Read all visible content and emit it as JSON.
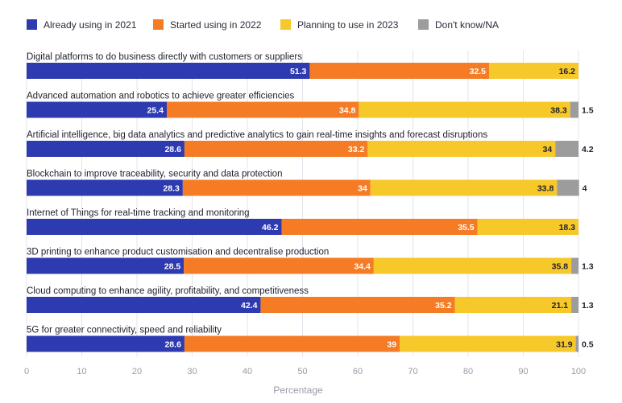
{
  "chart_data": {
    "type": "bar",
    "orientation": "horizontal",
    "stacked": true,
    "xlabel": "Percentage",
    "xlim": [
      0,
      100
    ],
    "xticks": [
      0,
      10,
      20,
      30,
      40,
      50,
      60,
      70,
      80,
      90,
      100
    ],
    "categories": [
      "Digital platforms to do business directly with customers or suppliers",
      "Advanced automation and robotics to achieve greater efficiencies",
      "Artificial intelligence, big data analytics and predictive analytics to gain real-time insights and forecast disruptions",
      "Blockchain to improve traceability, security and data protection",
      "Internet of Things for real-time tracking and monitoring",
      "3D printing to enhance product customisation and decentralise production",
      "Cloud computing to enhance agility, profitability, and competitiveness",
      "5G for greater connectivity, speed and reliability"
    ],
    "series": [
      {
        "name": "Already using in 2021",
        "color": "#2e3ab0",
        "label_color": "#ffffff",
        "values": [
          51.3,
          25.4,
          28.6,
          28.3,
          46.2,
          28.5,
          42.4,
          28.6
        ]
      },
      {
        "name": "Started using in 2022",
        "color": "#f57c25",
        "label_color": "#ffffff",
        "values": [
          32.5,
          34.8,
          33.2,
          34,
          35.5,
          34.4,
          35.2,
          39
        ]
      },
      {
        "name": "Planning to use in 2023",
        "color": "#f7c82a",
        "label_color": "#1f1f2e",
        "values": [
          16.2,
          38.3,
          34,
          33.8,
          18.3,
          35.8,
          21.1,
          31.9
        ]
      },
      {
        "name": "Don't know/NA",
        "color": "#9c9c9c",
        "label_color": "#1f1f2e",
        "values": [
          null,
          1.5,
          4.2,
          4,
          null,
          1.3,
          1.3,
          0.5
        ]
      }
    ]
  }
}
